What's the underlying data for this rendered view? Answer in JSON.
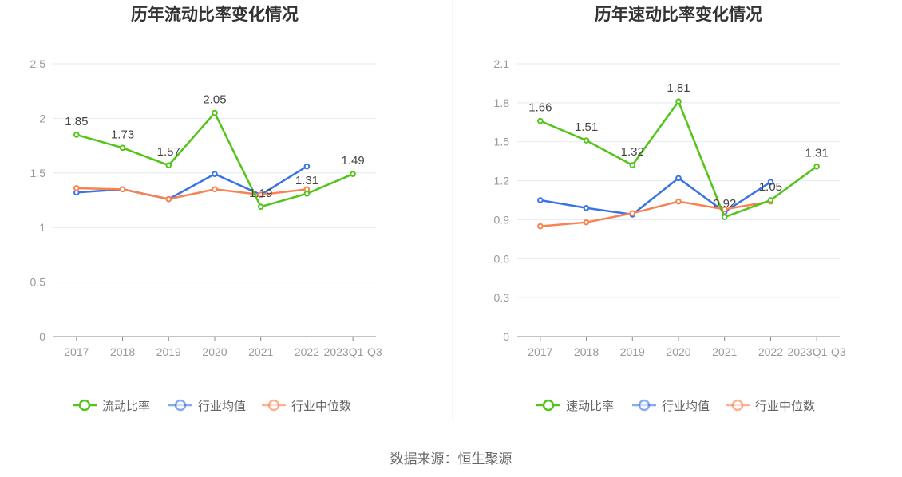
{
  "chart_data": [
    {
      "type": "line",
      "title": "历年流动比率变化情况",
      "categories": [
        "2017",
        "2018",
        "2019",
        "2020",
        "2021",
        "2022",
        "2023Q1-Q3"
      ],
      "ylim": [
        0,
        2.5
      ],
      "yticks": [
        "0",
        "0.5",
        "1",
        "1.5",
        "2",
        "2.5"
      ],
      "ytick_values": [
        0,
        0.5,
        1,
        1.5,
        2,
        2.5
      ],
      "legend": "bottom",
      "series": [
        {
          "name": "流动比率",
          "color": "#52c41a",
          "values": [
            1.85,
            1.73,
            1.57,
            2.05,
            1.19,
            1.31,
            1.49
          ],
          "labels": [
            "1.85",
            "1.73",
            "1.57",
            "2.05",
            "1.19",
            "1.31",
            "1.49"
          ]
        },
        {
          "name": "行业均值",
          "color": "#3874e6",
          "values": [
            1.32,
            1.35,
            1.26,
            1.49,
            1.3,
            1.56,
            null
          ]
        },
        {
          "name": "行业中位数",
          "color": "#fa8150",
          "values": [
            1.36,
            1.35,
            1.26,
            1.35,
            1.3,
            1.35,
            null
          ]
        }
      ]
    },
    {
      "type": "line",
      "title": "历年速动比率变化情况",
      "categories": [
        "2017",
        "2018",
        "2019",
        "2020",
        "2021",
        "2022",
        "2023Q1-Q3"
      ],
      "ylim": [
        0,
        2.1
      ],
      "yticks": [
        "0",
        "0.3",
        "0.6",
        "0.9",
        "1.2",
        "1.5",
        "1.8",
        "2.1"
      ],
      "ytick_values": [
        0,
        0.3,
        0.6,
        0.9,
        1.2,
        1.5,
        1.8,
        2.1
      ],
      "legend": "bottom",
      "series": [
        {
          "name": "速动比率",
          "color": "#52c41a",
          "values": [
            1.66,
            1.51,
            1.32,
            1.81,
            0.92,
            1.05,
            1.31
          ],
          "labels": [
            "1.66",
            "1.51",
            "1.32",
            "1.81",
            "0.92",
            "1.05",
            "1.31"
          ]
        },
        {
          "name": "行业均值",
          "color": "#3874e6",
          "values": [
            1.05,
            0.99,
            0.94,
            1.22,
            0.96,
            1.19,
            null
          ]
        },
        {
          "name": "行业中位数",
          "color": "#fa8150",
          "values": [
            0.85,
            0.88,
            0.95,
            1.04,
            0.98,
            1.04,
            null
          ]
        }
      ]
    }
  ],
  "source": "数据来源：恒生聚源"
}
